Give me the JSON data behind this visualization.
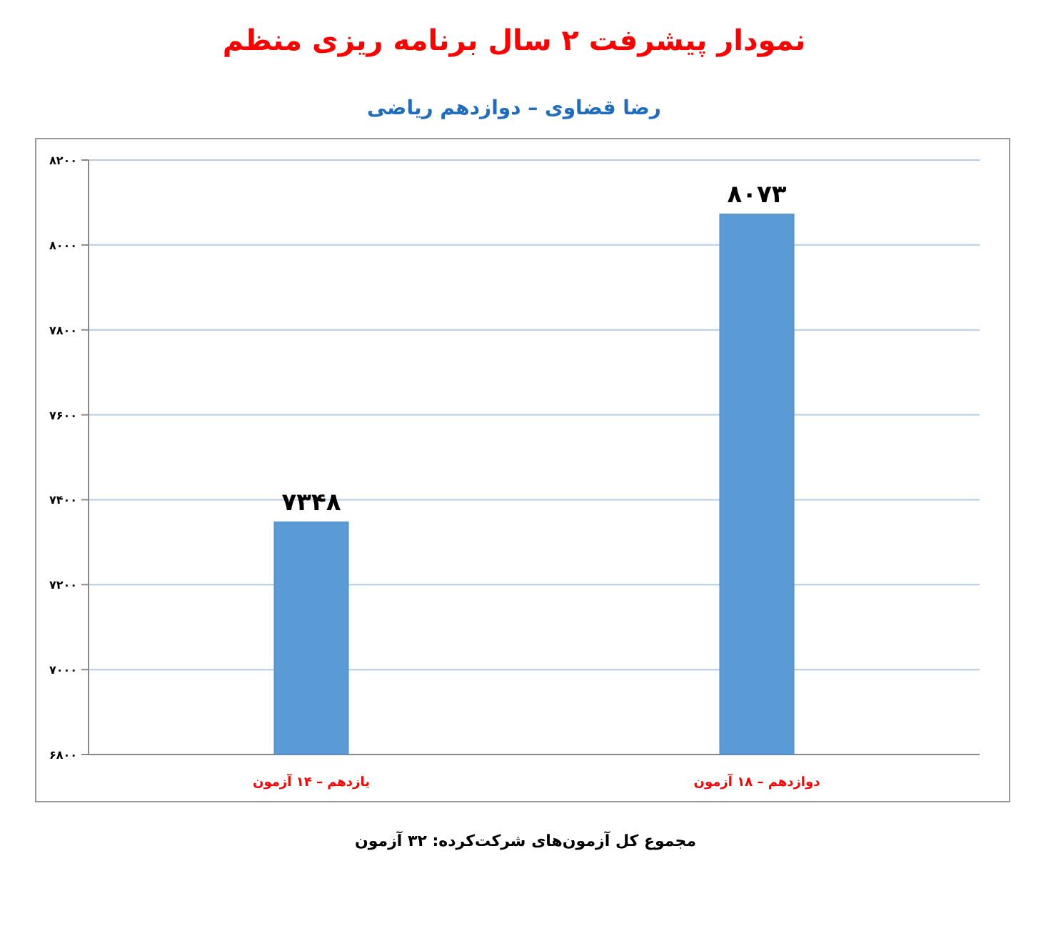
{
  "chart_data": {
    "type": "bar",
    "title": "نمودار پیشرفت ۲ سال برنامه ریزی منظم",
    "subtitle": "رضا قضاوی – دوازدهم ریاضی",
    "categories": [
      "یازدهم – ۱۴ آزمون",
      "دوازدهم – ۱۸ آزمون"
    ],
    "values": [
      7348,
      8073
    ],
    "value_labels": [
      "۷۳۴۸",
      "۸۰۷۳"
    ],
    "color": "#5b9bd5",
    "ylim": [
      6800,
      8200
    ],
    "yticks": [
      {
        "value": 6800,
        "label": "۶۸۰۰"
      },
      {
        "value": 7000,
        "label": "۷۰۰۰"
      },
      {
        "value": 7200,
        "label": "۷۲۰۰"
      },
      {
        "value": 7400,
        "label": "۷۴۰۰"
      },
      {
        "value": 7600,
        "label": "۷۶۰۰"
      },
      {
        "value": 7800,
        "label": "۷۸۰۰"
      },
      {
        "value": 8000,
        "label": "۸۰۰۰"
      },
      {
        "value": 8200,
        "label": "۸۲۰۰"
      }
    ],
    "grid": "y",
    "legend": false,
    "annotations": [
      "مجموع کل آزمون‌های شرکت‌کرده: ۳۲ آزمون"
    ]
  }
}
